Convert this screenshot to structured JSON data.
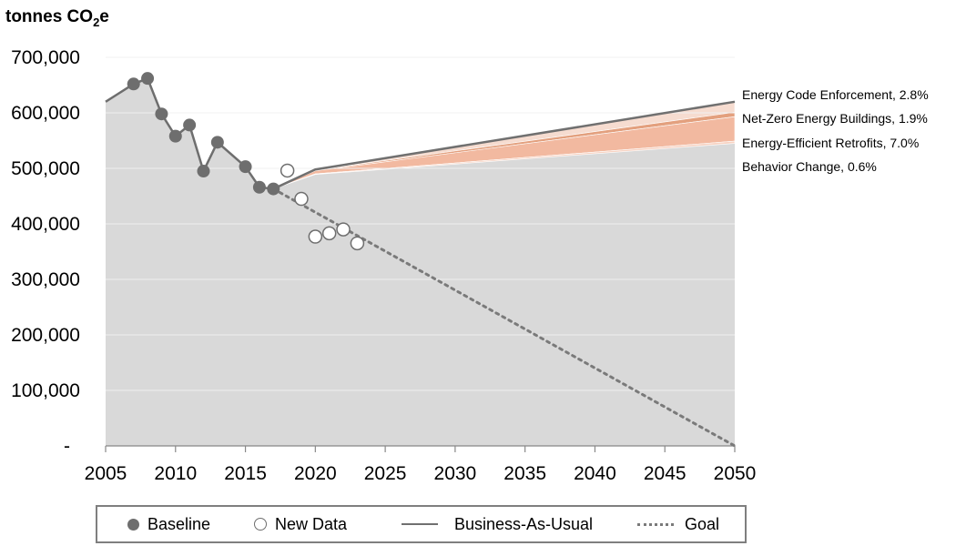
{
  "chart_data": {
    "type": "area",
    "ylabel": {
      "prefix": "tonnes CO",
      "sub": "2",
      "suffix": "e"
    },
    "xlim": [
      2005,
      2050
    ],
    "ylim": [
      0,
      700000
    ],
    "x_ticks": [
      2005,
      2010,
      2015,
      2020,
      2025,
      2030,
      2035,
      2040,
      2045,
      2050
    ],
    "y_ticks": [
      0,
      100000,
      200000,
      300000,
      400000,
      500000,
      600000,
      700000
    ],
    "y_tick_labels": [
      "-",
      "100,000",
      "200,000",
      "300,000",
      "400,000",
      "500,000",
      "600,000",
      "700,000"
    ],
    "series": [
      {
        "name": "Baseline",
        "style": "filled-markers-line",
        "x": [
          2005,
          2007,
          2008,
          2009,
          2010,
          2011,
          2012,
          2013,
          2015,
          2016,
          2017
        ],
        "y": [
          620000,
          652000,
          662000,
          598000,
          558000,
          578000,
          495000,
          547000,
          503000,
          466000,
          463000
        ]
      },
      {
        "name": "New Data",
        "style": "open-markers",
        "x": [
          2018,
          2019,
          2020,
          2021,
          2022,
          2023
        ],
        "y": [
          496000,
          445000,
          377000,
          383000,
          390000,
          365000
        ]
      },
      {
        "name": "Business-As-Usual",
        "style": "solid-line",
        "x": [
          2017,
          2020,
          2050
        ],
        "y": [
          463000,
          498000,
          620000
        ]
      },
      {
        "name": "Goal",
        "style": "dotted-line",
        "x": [
          2017,
          2050
        ],
        "y": [
          463000,
          0
        ]
      }
    ],
    "wedges": [
      {
        "name": "Energy Code Enforcement",
        "label": "Energy Code Enforcement, 2.8%",
        "x": [
          2017,
          2020,
          2050
        ],
        "top": [
          463000,
          498000,
          620000
        ],
        "bottom": [
          463000,
          496500,
          601000
        ],
        "color": "#f6dcd0"
      },
      {
        "name": "Net-Zero Energy Buildings",
        "label": "Net-Zero Energy Buildings, 1.9%",
        "x": [
          2017,
          2020,
          2050
        ],
        "top": [
          463000,
          496500,
          601000
        ],
        "bottom": [
          463000,
          495500,
          593000
        ],
        "color": "#e3a07e"
      },
      {
        "name": "Energy-Efficient Retrofits",
        "label": "Energy-Efficient Retrofits, 7.0%",
        "x": [
          2017,
          2020,
          2050
        ],
        "top": [
          463000,
          495500,
          593000
        ],
        "bottom": [
          463000,
          490000,
          549000
        ],
        "color": "#f2b9a0"
      },
      {
        "name": "Behavior Change",
        "label": "Behavior Change, 0.6%",
        "x": [
          2017,
          2020,
          2050
        ],
        "top": [
          463000,
          490000,
          549000
        ],
        "bottom": [
          463000,
          489000,
          545000
        ],
        "color": "#f7d3c3"
      }
    ],
    "remaining_area": {
      "x": [
        2017,
        2020,
        2050
      ],
      "y": [
        463000,
        489000,
        545000
      ],
      "color": "#d9d9d9"
    },
    "legend": [
      {
        "label": "Baseline",
        "marker": "filled"
      },
      {
        "label": "New Data",
        "marker": "open"
      },
      {
        "label": "Business-As-Usual",
        "marker": "solid-line"
      },
      {
        "label": "Goal",
        "marker": "dot-line"
      }
    ]
  }
}
